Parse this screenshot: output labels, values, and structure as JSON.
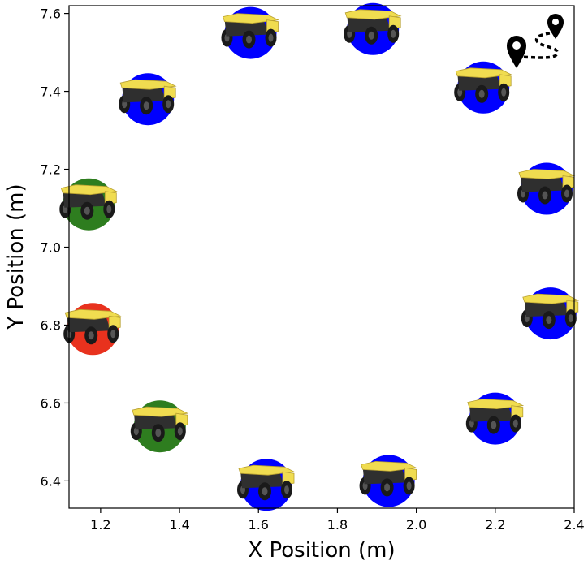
{
  "chart_data": {
    "type": "scatter",
    "title": "",
    "xlabel": "X Position (m)",
    "ylabel": "Y Position (m)",
    "xlim": [
      1.12,
      2.4
    ],
    "ylim": [
      6.33,
      7.62
    ],
    "xticks": [
      1.2,
      1.4,
      1.6,
      1.8,
      2.0,
      2.2,
      2.4
    ],
    "xtick_labels": [
      "1.2",
      "1.4",
      "1.6",
      "1.8",
      "2.0",
      "2.2",
      "2.4"
    ],
    "yticks": [
      6.4,
      6.6,
      6.8,
      7.0,
      7.2,
      7.4,
      7.6
    ],
    "ytick_labels": [
      "6.4",
      "6.6",
      "6.8",
      "7.0",
      "7.2",
      "7.4",
      "7.6"
    ],
    "grid": false,
    "marker_icon": "rover-robot-icon",
    "corner_icon": "route-waypoints-icon",
    "colors": {
      "blue": "#0000ff",
      "green": "#2e7d1f",
      "red": "#e8321e",
      "robot_body": "#2f2f2f",
      "robot_top": "#f0dc50",
      "wheel": "#1a1a1a"
    },
    "points": [
      {
        "x": 1.58,
        "y": 7.55,
        "color": "blue"
      },
      {
        "x": 1.89,
        "y": 7.56,
        "color": "blue"
      },
      {
        "x": 1.32,
        "y": 7.38,
        "color": "blue"
      },
      {
        "x": 2.17,
        "y": 7.41,
        "color": "blue"
      },
      {
        "x": 1.17,
        "y": 7.11,
        "color": "green"
      },
      {
        "x": 2.33,
        "y": 7.15,
        "color": "blue"
      },
      {
        "x": 1.18,
        "y": 6.79,
        "color": "red"
      },
      {
        "x": 2.34,
        "y": 6.83,
        "color": "blue"
      },
      {
        "x": 1.35,
        "y": 6.54,
        "color": "green"
      },
      {
        "x": 2.2,
        "y": 6.56,
        "color": "blue"
      },
      {
        "x": 1.62,
        "y": 6.39,
        "color": "blue"
      },
      {
        "x": 1.93,
        "y": 6.4,
        "color": "blue"
      }
    ]
  }
}
